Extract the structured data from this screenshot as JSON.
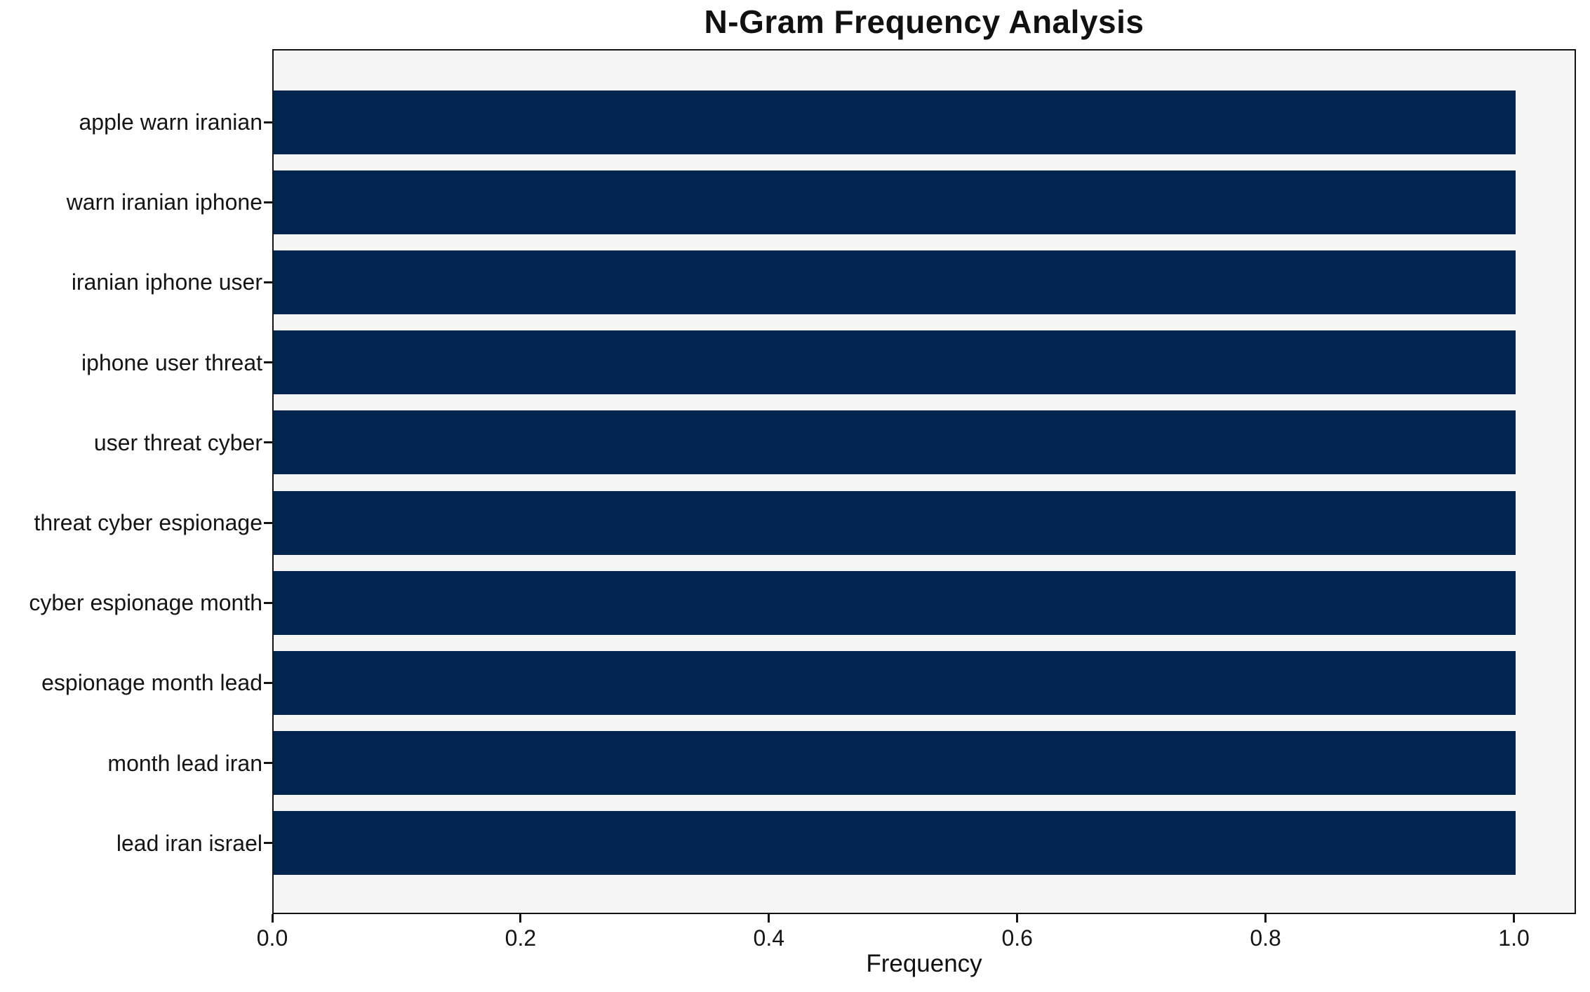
{
  "chart_data": {
    "type": "bar",
    "orientation": "horizontal",
    "title": "N-Gram Frequency Analysis",
    "xlabel": "Frequency",
    "ylabel": "",
    "categories": [
      "apple warn iranian",
      "warn iranian iphone",
      "iranian iphone user",
      "iphone user threat",
      "user threat cyber",
      "threat cyber espionage",
      "cyber espionage month",
      "espionage month lead",
      "month lead iran",
      "lead iran israel"
    ],
    "values": [
      1.0,
      1.0,
      1.0,
      1.0,
      1.0,
      1.0,
      1.0,
      1.0,
      1.0,
      1.0
    ],
    "xlim": [
      0,
      1.05
    ],
    "x_ticks": [
      0.0,
      0.2,
      0.4,
      0.6,
      0.8,
      1.0
    ],
    "x_tick_labels": [
      "0.0",
      "0.2",
      "0.4",
      "0.6",
      "0.8",
      "1.0"
    ],
    "grid": false,
    "legend": "none",
    "bar_color": "#01254f",
    "plot_background": "#f5f5f6",
    "figure_background": "#ffffff",
    "axis_color": "#131313"
  }
}
